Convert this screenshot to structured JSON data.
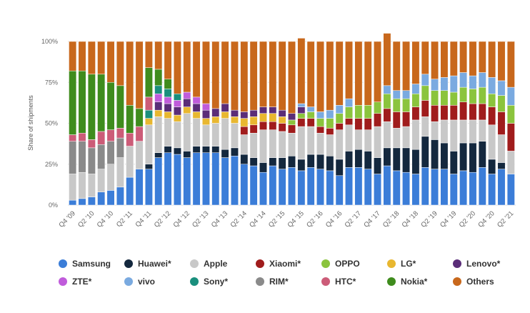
{
  "chart_data": {
    "type": "bar",
    "stacked": true,
    "ylabel": "Share of shipments",
    "yticks": [
      "0%",
      "25%",
      "50%",
      "75%",
      "100%"
    ],
    "ylim": [
      0,
      100
    ],
    "grid": true,
    "legend_position": "bottom",
    "categories": [
      "Q4 '09",
      "Q1 '10",
      "Q2 '10",
      "Q3 '10",
      "Q4 '10",
      "Q1 '11",
      "Q2 '11",
      "Q3 '11",
      "Q4 '11",
      "Q1 '12",
      "Q2 '12",
      "Q3 '12",
      "Q4 '12",
      "Q1 '13",
      "Q2 '13",
      "Q3 '13",
      "Q4 '13",
      "Q1 '14",
      "Q2 '14",
      "Q3 '14",
      "Q4 '14",
      "Q1 '15",
      "Q2 '15",
      "Q3 '15",
      "Q4 '15",
      "Q1 '16",
      "Q2 '16",
      "Q3 '16",
      "Q4 '16",
      "Q1 '17",
      "Q2 '17",
      "Q3 '17",
      "Q4 '17",
      "Q1 '18",
      "Q2 '18",
      "Q3 '18",
      "Q4 '18",
      "Q1 '19",
      "Q2 '19",
      "Q3 '19",
      "Q4 '19",
      "Q1 '20",
      "Q2 '20",
      "Q3 '20",
      "Q4 '20",
      "Q1 '21",
      "Q2 '21"
    ],
    "tick_labels": [
      "Q4 '09",
      "Q2 '10",
      "Q4 '10",
      "Q2 '11",
      "Q4 '11",
      "Q2 '12",
      "Q4 '12",
      "Q2 '13",
      "Q4 '13",
      "Q2 '14",
      "Q4 '14",
      "Q2 '15",
      "Q4 '15",
      "Q2 '16",
      "Q4 '16",
      "Q2 '17",
      "Q4 '17",
      "Q2 '18",
      "Q4 '18",
      "Q2 '19",
      "Q4 '19",
      "Q2 '20",
      "Q4 '20",
      "Q2 '21"
    ],
    "series": [
      {
        "name": "Samsung",
        "color": "#3b7dd8",
        "values": [
          3,
          4,
          5,
          8,
          9,
          11,
          17,
          22,
          22,
          29,
          32,
          31,
          29,
          32,
          32,
          32,
          29,
          30,
          25,
          24,
          20,
          24,
          22,
          23,
          21,
          23,
          22,
          21,
          18,
          23,
          23,
          22,
          19,
          24,
          21,
          20,
          19,
          23,
          22,
          22,
          19,
          21,
          20,
          23,
          19,
          22,
          19
        ]
      },
      {
        "name": "Huawei*",
        "color": "#14283e",
        "values": [
          0,
          0,
          0,
          0,
          0,
          0,
          0,
          0,
          3,
          3,
          4,
          4,
          4,
          4,
          4,
          4,
          5,
          5,
          6,
          5,
          6,
          5,
          7,
          7,
          7,
          8,
          9,
          9,
          10,
          10,
          11,
          11,
          10,
          11,
          14,
          15,
          15,
          19,
          18,
          16,
          14,
          17,
          18,
          16,
          9,
          4,
          0
        ]
      },
      {
        "name": "Apple",
        "color": "#c8c8c8",
        "values": [
          16,
          16,
          14,
          14,
          16,
          18,
          19,
          17,
          24,
          22,
          17,
          16,
          23,
          17,
          13,
          14,
          19,
          15,
          12,
          15,
          20,
          17,
          16,
          14,
          20,
          17,
          13,
          13,
          18,
          16,
          12,
          13,
          19,
          16,
          12,
          13,
          18,
          12,
          11,
          14,
          19,
          14,
          14,
          13,
          21,
          17,
          14
        ]
      },
      {
        "name": "Xiaomi*",
        "color": "#a01c1c",
        "values": [
          0,
          0,
          0,
          0,
          0,
          0,
          0,
          0,
          0,
          0,
          0,
          0,
          0,
          0,
          0,
          0,
          0,
          0,
          5,
          5,
          5,
          5,
          5,
          5,
          5,
          5,
          4,
          4,
          4,
          4,
          7,
          7,
          8,
          8,
          10,
          9,
          8,
          10,
          10,
          9,
          9,
          11,
          10,
          10,
          11,
          14,
          17
        ]
      },
      {
        "name": "OPPO",
        "color": "#8bc43d",
        "values": [
          0,
          0,
          0,
          0,
          0,
          0,
          0,
          0,
          0,
          0,
          0,
          0,
          0,
          0,
          0,
          0,
          0,
          0,
          0,
          0,
          0,
          0,
          0,
          3,
          3,
          4,
          5,
          6,
          6,
          7,
          8,
          8,
          7,
          9,
          8,
          8,
          8,
          9,
          9,
          9,
          8,
          9,
          9,
          10,
          8,
          10,
          11
        ]
      },
      {
        "name": "LG*",
        "color": "#e8b730",
        "values": [
          0,
          0,
          0,
          0,
          0,
          0,
          0,
          0,
          4,
          4,
          4,
          4,
          4,
          4,
          4,
          4,
          4,
          4,
          5,
          5,
          5,
          5,
          4,
          0,
          0,
          0,
          0,
          0,
          0,
          0,
          0,
          0,
          0,
          0,
          0,
          0,
          0,
          0,
          0,
          0,
          0,
          0,
          0,
          0,
          0,
          0,
          0
        ]
      },
      {
        "name": "Lenovo*",
        "color": "#5a2d78",
        "values": [
          0,
          0,
          0,
          0,
          0,
          0,
          0,
          0,
          0,
          5,
          5,
          5,
          5,
          5,
          5,
          5,
          5,
          4,
          4,
          4,
          4,
          4,
          4,
          4,
          4,
          0,
          0,
          0,
          0,
          0,
          0,
          0,
          0,
          0,
          0,
          0,
          0,
          0,
          0,
          0,
          0,
          0,
          0,
          0,
          0,
          0,
          0
        ]
      },
      {
        "name": "ZTE*",
        "color": "#c05cdb",
        "values": [
          0,
          0,
          0,
          0,
          0,
          0,
          0,
          0,
          0,
          5,
          4,
          4,
          4,
          4,
          4,
          0,
          0,
          0,
          0,
          0,
          0,
          0,
          0,
          0,
          0,
          0,
          0,
          0,
          0,
          0,
          0,
          0,
          0,
          0,
          0,
          0,
          0,
          0,
          0,
          0,
          0,
          0,
          0,
          0,
          0,
          0,
          0
        ]
      },
      {
        "name": "vivo",
        "color": "#7aaae0",
        "values": [
          0,
          0,
          0,
          0,
          0,
          0,
          0,
          0,
          0,
          0,
          0,
          0,
          0,
          0,
          0,
          0,
          0,
          0,
          0,
          0,
          0,
          0,
          0,
          0,
          2,
          3,
          4,
          5,
          5,
          5,
          0,
          0,
          0,
          5,
          5,
          5,
          6,
          7,
          7,
          8,
          10,
          9,
          8,
          9,
          10,
          9,
          11
        ]
      },
      {
        "name": "Sony*",
        "color": "#1a8f7d",
        "values": [
          0,
          0,
          0,
          0,
          0,
          0,
          0,
          0,
          5,
          5,
          5,
          4,
          0,
          0,
          0,
          0,
          0,
          0,
          0,
          0,
          0,
          0,
          0,
          0,
          0,
          0,
          0,
          0,
          0,
          0,
          0,
          0,
          0,
          0,
          0,
          0,
          0,
          0,
          0,
          0,
          0,
          0,
          0,
          0,
          0,
          0,
          0
        ]
      },
      {
        "name": "RIM*",
        "color": "#8a8a8a",
        "values": [
          20,
          19,
          16,
          15,
          14,
          12,
          0,
          0,
          0,
          0,
          0,
          0,
          0,
          0,
          0,
          0,
          0,
          0,
          0,
          0,
          0,
          0,
          0,
          0,
          0,
          0,
          0,
          0,
          0,
          0,
          0,
          0,
          0,
          0,
          0,
          0,
          0,
          0,
          0,
          0,
          0,
          0,
          0,
          0,
          0,
          0,
          0
        ]
      },
      {
        "name": "HTC*",
        "color": "#cc5c78",
        "values": [
          4,
          5,
          5,
          8,
          7,
          6,
          8,
          9,
          8,
          0,
          0,
          0,
          0,
          0,
          0,
          0,
          0,
          0,
          0,
          0,
          0,
          0,
          0,
          0,
          0,
          0,
          0,
          0,
          0,
          0,
          0,
          0,
          0,
          0,
          0,
          0,
          0,
          0,
          0,
          0,
          0,
          0,
          0,
          0,
          0,
          0,
          0
        ]
      },
      {
        "name": "Nokia*",
        "color": "#3f8c1d",
        "values": [
          39,
          38,
          40,
          35,
          29,
          26,
          17,
          11,
          18,
          10,
          6,
          0,
          0,
          0,
          0,
          0,
          0,
          0,
          0,
          0,
          0,
          0,
          0,
          0,
          0,
          0,
          0,
          0,
          0,
          0,
          0,
          0,
          0,
          0,
          0,
          0,
          0,
          0,
          0,
          0,
          0,
          0,
          0,
          0,
          0,
          0,
          0
        ]
      },
      {
        "name": "Others",
        "color": "#c8681c",
        "values": [
          18,
          18,
          20,
          20,
          25,
          27,
          39,
          41,
          16,
          17,
          23,
          32,
          31,
          34,
          38,
          41,
          38,
          42,
          43,
          42,
          40,
          40,
          42,
          44,
          40,
          40,
          43,
          42,
          39,
          35,
          39,
          39,
          37,
          32,
          30,
          30,
          26,
          20,
          23,
          22,
          21,
          19,
          21,
          19,
          22,
          24,
          28
        ]
      }
    ]
  }
}
